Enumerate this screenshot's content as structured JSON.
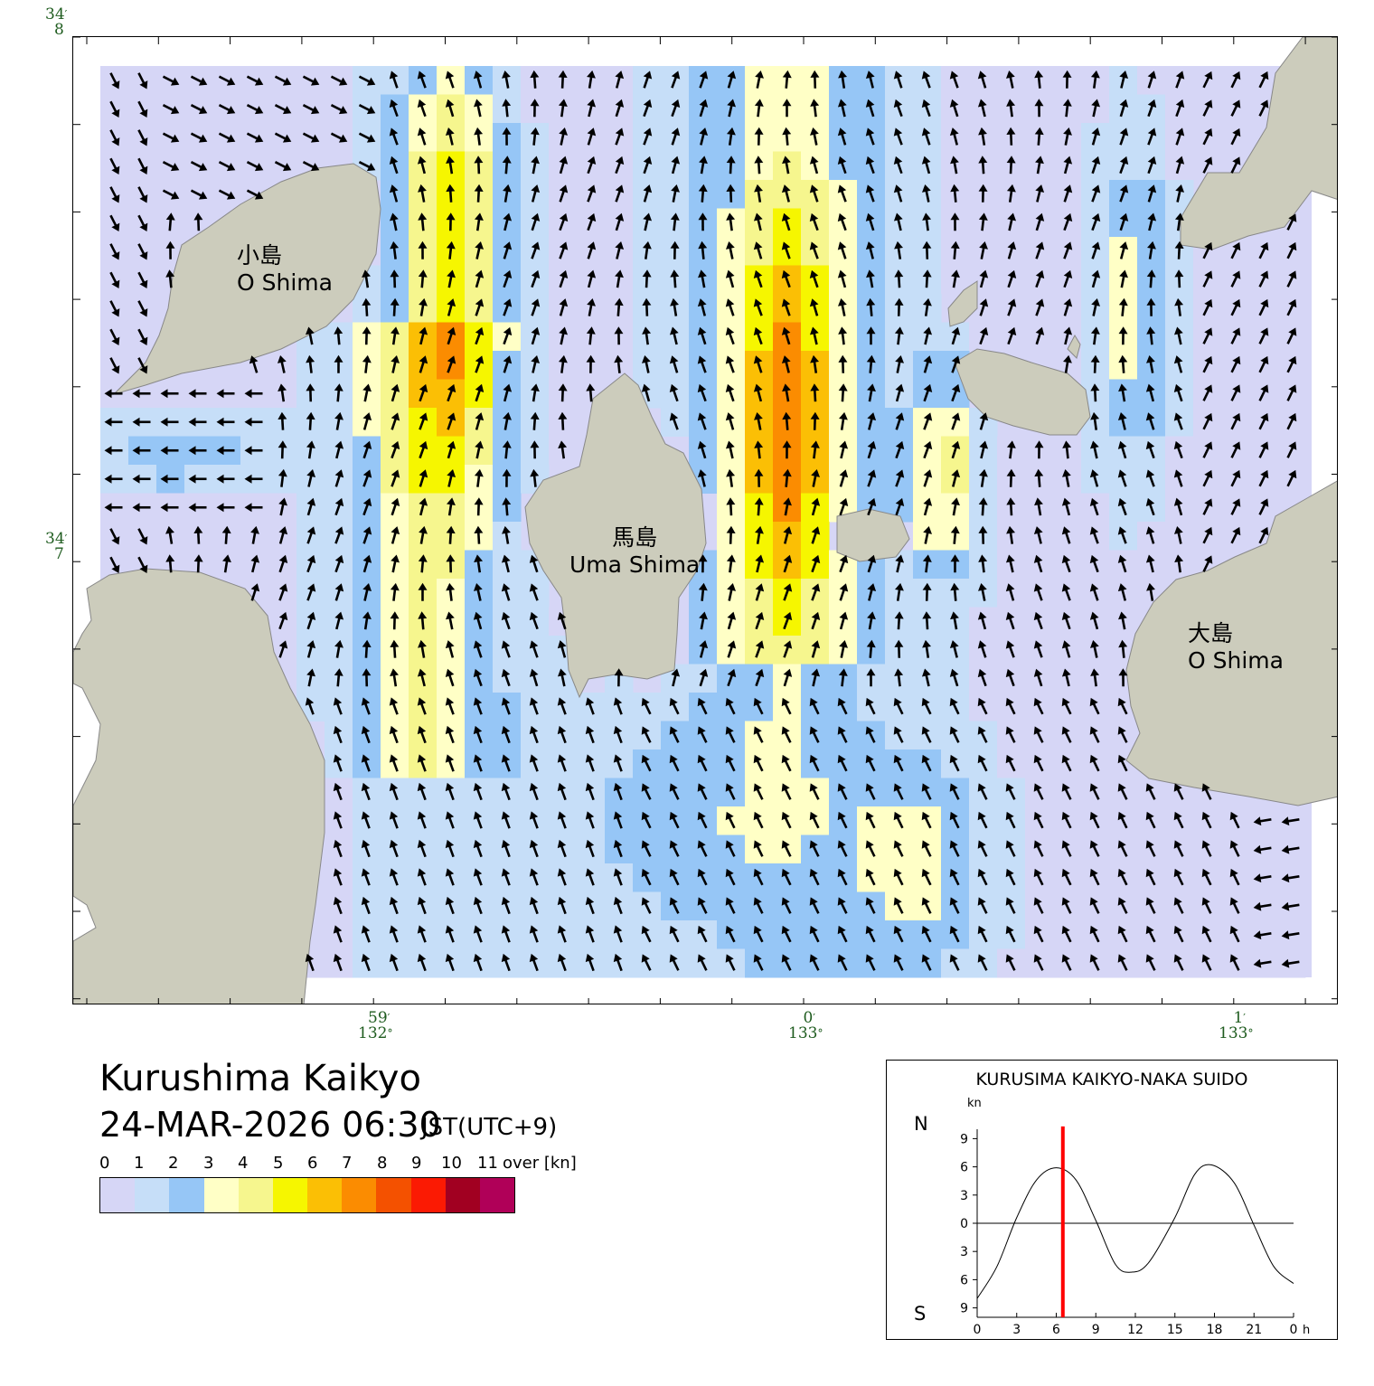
{
  "map": {
    "lat_labels": [
      {
        "deg": "34",
        "min": "8"
      },
      {
        "deg": "34",
        "min": "7"
      }
    ],
    "lon_labels": [
      {
        "deg": "132",
        "min": "59"
      },
      {
        "deg": "133",
        "min": "0"
      },
      {
        "deg": "133",
        "min": "1"
      }
    ],
    "islands": [
      {
        "name_ja": "小島",
        "name_en": "O Shima"
      },
      {
        "name_ja": "馬島",
        "name_en": "Uma Shima"
      },
      {
        "name_ja": "大島",
        "name_en": "O Shima"
      }
    ],
    "land_color": "#ccccbc",
    "sea_color": "#d6d6f6"
  },
  "header": {
    "title": "Kurushima Kaikyo",
    "datetime": "24-MAR-2026 06:30",
    "timezone": "JST(UTC+9)"
  },
  "legend": {
    "ticks": [
      "0",
      "1",
      "2",
      "3",
      "4",
      "5",
      "6",
      "7",
      "8",
      "9",
      "10",
      "11"
    ],
    "over_label": "over [kn]",
    "colors": [
      "#d6d6f6",
      "#c6def8",
      "#96c6f6",
      "#ffffc6",
      "#f6f68e",
      "#f6f600",
      "#fbbf05",
      "#fb8c01",
      "#f45100",
      "#fb1a03",
      "#a10021",
      "#b00058"
    ]
  },
  "tide_chart": {
    "title": "KURUSIMA KAIKYO-NAKA SUIDO",
    "unit": "kn",
    "north_label": "N",
    "south_label": "S",
    "y_ticks": [
      "9",
      "6",
      "3",
      "0",
      "3",
      "6",
      "9"
    ],
    "x_ticks": [
      "0",
      "3",
      "6",
      "9",
      "12",
      "15",
      "18",
      "21",
      "0"
    ],
    "x_unit": "h",
    "current_time_hours": 6.5,
    "current_time_color": "#ff0000",
    "series": [
      {
        "hour": 0,
        "speed": -8.0
      },
      {
        "hour": 1.5,
        "speed": -4.6
      },
      {
        "hour": 3,
        "speed": 0.6
      },
      {
        "hour": 4.5,
        "speed": 4.6
      },
      {
        "hour": 6,
        "speed": 5.9
      },
      {
        "hour": 7.5,
        "speed": 4.6
      },
      {
        "hour": 9,
        "speed": 0.3
      },
      {
        "hour": 10.5,
        "speed": -4.4
      },
      {
        "hour": 11.7,
        "speed": -5.2
      },
      {
        "hour": 13,
        "speed": -4.2
      },
      {
        "hour": 15,
        "speed": 0.6
      },
      {
        "hour": 16.5,
        "speed": 5.2
      },
      {
        "hour": 17.8,
        "speed": 6.2
      },
      {
        "hour": 19.5,
        "speed": 4.3
      },
      {
        "hour": 21,
        "speed": -0.2
      },
      {
        "hour": 22.5,
        "speed": -4.6
      },
      {
        "hour": 24,
        "speed": -6.4
      }
    ]
  }
}
